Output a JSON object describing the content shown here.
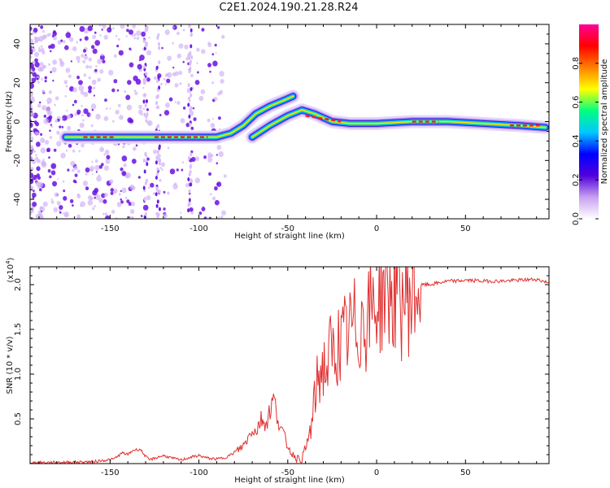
{
  "title": "C2E1.2024.190.21.28.R24",
  "chart_data": [
    {
      "type": "heatmap",
      "xlabel": "Height of straight line (km)",
      "ylabel": "Frequency (Hz)",
      "xlim": [
        -195,
        97
      ],
      "ylim": [
        -50,
        50
      ],
      "xticks": [
        -150,
        -100,
        -50,
        0,
        50
      ],
      "yticks": [
        -40,
        -20,
        0,
        20,
        40
      ],
      "colorbar": {
        "label": "Normalized spectral amplitude",
        "range": [
          0,
          1
        ],
        "ticks": [
          "0.0",
          "0.2",
          "0.4",
          "0.6",
          "0.8"
        ],
        "colormap": [
          "#ffffff",
          "#c8a0f0",
          "#5000dc",
          "#0000ff",
          "#00c8ff",
          "#00ff80",
          "#ffff00",
          "#ff8000",
          "#ff0000",
          "#ff0096"
        ]
      },
      "ridge": {
        "x": [
          -175,
          -150,
          -130,
          -110,
          -90,
          -82,
          -75,
          -68,
          -60,
          -52,
          -47
        ],
        "y": [
          -8,
          -8,
          -8,
          -8,
          -8,
          -6,
          -2,
          4,
          8,
          11,
          13
        ],
        "x2": [
          -70,
          -60,
          -50,
          -42,
          -35,
          -25,
          -15,
          0,
          20,
          40,
          60,
          80,
          95
        ],
        "y2": [
          -8,
          -2,
          3,
          6,
          4,
          0,
          -1,
          -1,
          0,
          0,
          -1,
          -2,
          -3
        ]
      }
    },
    {
      "type": "line",
      "xlabel": "Height of straight line (km)",
      "ylabel": "SNR (10 * v/v)",
      "yscale_label": "(x10",
      "yscale_exp": "4",
      "xlim": [
        -195,
        97
      ],
      "ylim": [
        0,
        2.2
      ],
      "xticks": [
        -150,
        -100,
        -50,
        0,
        50
      ],
      "yticks": [
        0.5,
        1.0,
        1.5,
        2.0
      ],
      "color": "#e03030",
      "series": [
        {
          "x": [
            -195,
            -160,
            -148,
            -143,
            -140,
            -137,
            -133,
            -130,
            -128,
            -125,
            -120,
            -115,
            -110,
            -105,
            -100,
            -95,
            -90,
            -85,
            -80,
            -75,
            -72,
            -70,
            -68,
            -65,
            -62,
            -60,
            -58,
            -56,
            -54,
            -52,
            -50,
            -48,
            -46,
            -44,
            -42,
            -40,
            -38,
            -36,
            -34,
            -32,
            -30,
            -28,
            -26,
            -24,
            -22,
            -20,
            -18,
            -16,
            -14,
            -12,
            -10,
            -8,
            -6,
            -4,
            -2,
            0,
            2,
            4,
            6,
            8,
            10,
            12,
            14,
            16,
            18,
            20,
            22,
            24,
            26,
            30,
            35,
            40,
            45,
            50,
            60,
            70,
            80,
            90,
            97
          ],
          "y": [
            0.01,
            0.02,
            0.05,
            0.12,
            0.1,
            0.15,
            0.16,
            0.08,
            0.04,
            0.06,
            0.09,
            0.06,
            0.04,
            0.07,
            0.09,
            0.06,
            0.05,
            0.07,
            0.12,
            0.2,
            0.3,
            0.4,
            0.35,
            0.5,
            0.45,
            0.6,
            0.72,
            0.55,
            0.4,
            0.3,
            0.2,
            0.12,
            0.08,
            0.05,
            0.06,
            0.15,
            0.3,
            0.5,
            0.85,
            1.0,
            1.1,
            1.05,
            1.25,
            1.2,
            1.35,
            1.3,
            1.4,
            1.45,
            1.5,
            1.55,
            1.5,
            1.65,
            1.6,
            1.7,
            1.75,
            1.8,
            1.85,
            1.95,
            2.0,
            1.85,
            1.9,
            1.95,
            1.8,
            1.9,
            1.85,
            1.9,
            1.95,
            1.98,
            2.0,
            2.0,
            2.02,
            2.04,
            2.04,
            2.05,
            2.04,
            2.04,
            2.05,
            2.06,
            2.02
          ]
        }
      ]
    }
  ]
}
